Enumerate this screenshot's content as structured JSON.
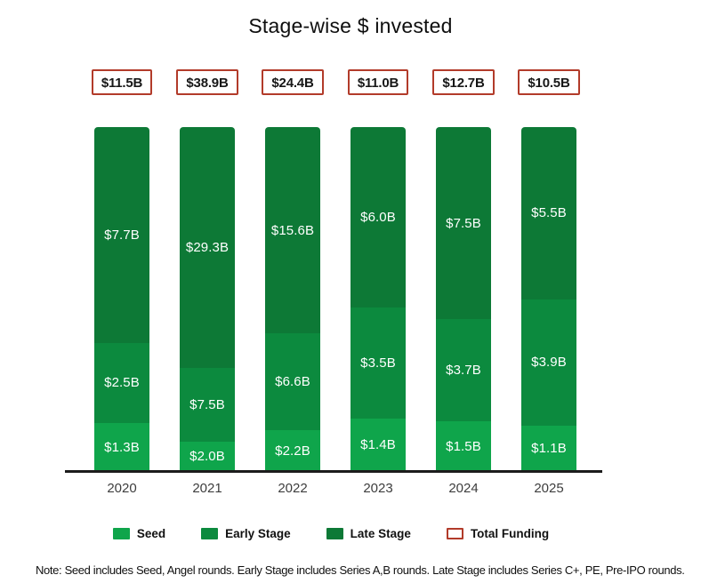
{
  "title": "Stage-wise $ invested",
  "note": "Note: Seed includes Seed, Angel rounds. Early Stage includes Series A,B rounds. Late Stage includes Series C+, PE, Pre-IPO rounds.",
  "colors": {
    "seed": "#0FA54B",
    "early_stage": "#0C8A3E",
    "late_stage": "#0D7936",
    "total_funding_border": "#B23B2A",
    "axis": "#1C1C1C"
  },
  "chart_data": {
    "type": "bar",
    "variant": "stacked-100pct-column",
    "title": "Stage-wise $ invested",
    "categories": [
      "2020",
      "2021",
      "2022",
      "2023",
      "2024",
      "2025"
    ],
    "series": [
      {
        "name": "Seed",
        "color": "#0FA54B",
        "values": [
          1.3,
          2.0,
          2.2,
          1.4,
          1.5,
          1.1
        ],
        "labels": [
          "$1.3B",
          "$2.0B",
          "$2.2B",
          "$1.4B",
          "$1.5B",
          "$1.1B"
        ]
      },
      {
        "name": "Early Stage",
        "color": "#0C8A3E",
        "values": [
          2.5,
          7.5,
          6.6,
          3.5,
          3.7,
          3.9
        ],
        "labels": [
          "$2.5B",
          "$7.5B",
          "$6.6B",
          "$3.5B",
          "$3.7B",
          "$3.9B"
        ]
      },
      {
        "name": "Late Stage",
        "color": "#0D7936",
        "values": [
          7.7,
          29.3,
          15.6,
          6.0,
          7.5,
          5.5
        ],
        "labels": [
          "$7.7B",
          "$29.3B",
          "$15.6B",
          "$6.0B",
          "$7.5B",
          "$5.5B"
        ]
      }
    ],
    "totals": {
      "name": "Total Funding",
      "labels": [
        "$11.5B",
        "$38.9B",
        "$24.4B",
        "$11.0B",
        "$12.7B",
        "$10.5B"
      ]
    },
    "legend_entries": [
      "Seed",
      "Early Stage",
      "Late Stage",
      "Total Funding"
    ],
    "legend_position": "bottom",
    "axes": {
      "x_labels_visible": true,
      "y_axis_visible": false,
      "gridlines": false
    },
    "stack_order_top_to_bottom": [
      "Late Stage",
      "Early Stage",
      "Seed"
    ]
  }
}
